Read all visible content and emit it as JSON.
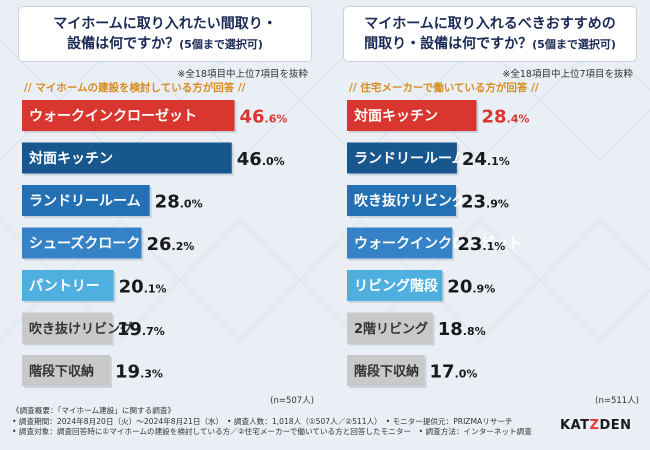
{
  "left": {
    "question_line1": "マイホームに取り入れたい間取り・",
    "question_line2_main": "設備は何ですか？",
    "question_line2_small": "(5個まで選択可)",
    "note": "※全18項目中上位7項目を抜粋",
    "subtitle": "// マイホームの建設を検討している方が回答 //",
    "n_label": "(n=507人)"
  },
  "right": {
    "question_line1": "マイホームに取り入れるべきおすすめの",
    "question_line2_main": "間取り・設備は何ですか？",
    "question_line2_small": "(5個まで選択可)",
    "note": "※全18項目中上位7項目を抜粋",
    "subtitle": "// 住宅メーカーで働いている方が回答 //",
    "n_label": "(n=511人)"
  },
  "chart_data": [
    {
      "type": "bar",
      "orientation": "horizontal",
      "unit": "%",
      "xlim": [
        0,
        50
      ],
      "categories": [
        "ウォークインクローゼット",
        "対面キッチン",
        "ランドリールーム",
        "シューズクローク",
        "パントリー",
        "吹き抜けリビング",
        "階段下収納"
      ],
      "values": [
        46.6,
        46.0,
        28.0,
        26.2,
        20.1,
        19.7,
        19.3
      ],
      "bar_colors": [
        "#d9362f",
        "#17578e",
        "#2371b4",
        "#3583c6",
        "#4fb0df",
        "#c9c9c9",
        "#c9c9c9"
      ],
      "label_colors": [
        "#ffffff",
        "#ffffff",
        "#ffffff",
        "#ffffff",
        "#ffffff",
        "#333333",
        "#333333"
      ]
    },
    {
      "type": "bar",
      "orientation": "horizontal",
      "unit": "%",
      "xlim": [
        0,
        50
      ],
      "categories": [
        "対面キッチン",
        "ランドリールーム",
        "吹き抜けリビング",
        "ウォークインクローゼット",
        "リビング階段",
        "2階リビング",
        "階段下収納"
      ],
      "values": [
        28.4,
        24.1,
        23.9,
        23.1,
        20.9,
        18.8,
        17.0
      ],
      "bar_colors": [
        "#d9362f",
        "#17578e",
        "#2371b4",
        "#3583c6",
        "#4fb0df",
        "#c9c9c9",
        "#c9c9c9"
      ],
      "label_colors": [
        "#ffffff",
        "#ffffff",
        "#ffffff",
        "#ffffff",
        "#ffffff",
        "#333333",
        "#333333"
      ]
    }
  ],
  "footer": {
    "line1": "《調査概要：「マイホーム建設」に関する調査》",
    "line2": "• 調査期間：2024年8月20日（火）〜2024年8月21日（水）　• 調査人数：1,018人（①507人／②511人）　• モニター提供元：PRIZMAリサーチ",
    "line3": "• 調査対象：調査回答時に①マイホームの建設を検討している方／②住宅メーカーで働いている方と回答したモニター　• 調査方法：インターネット調査"
  },
  "logo": {
    "part1": "KAT",
    "dash": "Z",
    "part2": "DEN"
  },
  "colors": {
    "value_accent": "#d9362f",
    "value_normal": "#1a1a1a",
    "question_text": "#1a2a55",
    "subtitle": "#d98b21"
  }
}
